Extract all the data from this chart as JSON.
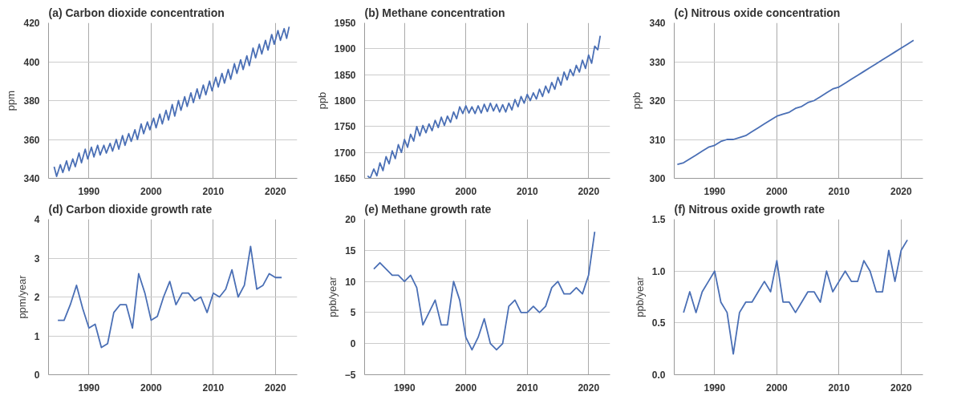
{
  "chart_data": [
    {
      "type": "line",
      "title": "(a)    Carbon dioxide concentration",
      "ylabel": "ppm",
      "xlim": [
        1983.5,
        2023.5
      ],
      "xticks": [
        1990,
        2000,
        2010,
        2020
      ],
      "ylim": [
        340,
        420
      ],
      "yticks": [
        340,
        360,
        380,
        400,
        420
      ],
      "grid": true,
      "x": [
        1984.4,
        1984.8,
        1985.4,
        1985.8,
        1986.4,
        1986.8,
        1987.4,
        1987.8,
        1988.4,
        1988.8,
        1989.4,
        1989.8,
        1990.4,
        1990.8,
        1991.4,
        1991.8,
        1992.4,
        1992.8,
        1993.4,
        1993.8,
        1994.4,
        1994.8,
        1995.4,
        1995.8,
        1996.4,
        1996.8,
        1997.4,
        1997.8,
        1998.4,
        1998.8,
        1999.4,
        1999.8,
        2000.4,
        2000.8,
        2001.4,
        2001.8,
        2002.4,
        2002.8,
        2003.4,
        2003.8,
        2004.4,
        2004.8,
        2005.4,
        2005.8,
        2006.4,
        2006.8,
        2007.4,
        2007.8,
        2008.4,
        2008.8,
        2009.4,
        2009.8,
        2010.4,
        2010.8,
        2011.4,
        2011.8,
        2012.4,
        2012.8,
        2013.4,
        2013.8,
        2014.4,
        2014.8,
        2015.4,
        2015.8,
        2016.4,
        2016.8,
        2017.4,
        2017.8,
        2018.4,
        2018.8,
        2019.4,
        2019.8,
        2020.4,
        2020.8,
        2021.4,
        2021.8,
        2022.2
      ],
      "series": [
        {
          "color": "#4a6fb5",
          "values": [
            346,
            341,
            347,
            343,
            349,
            344,
            350,
            346,
            353,
            348,
            355,
            350,
            356,
            351,
            357,
            352,
            357,
            353,
            358,
            354,
            360,
            355,
            362,
            357,
            363,
            359,
            365,
            360,
            368,
            363,
            369,
            365,
            371,
            366,
            373,
            368,
            375,
            370,
            378,
            372,
            380,
            375,
            382,
            377,
            384,
            379,
            386,
            381,
            388,
            383,
            390,
            385,
            392,
            387,
            394,
            389,
            396,
            391,
            399,
            394,
            401,
            396,
            403,
            398,
            407,
            402,
            409,
            404,
            411,
            406,
            414,
            409,
            416,
            411,
            417,
            412,
            418
          ]
        }
      ]
    },
    {
      "type": "line",
      "title": "(b)    Methane concentration",
      "ylabel": "ppb",
      "xlim": [
        1983.5,
        2023.5
      ],
      "xticks": [
        1990,
        2000,
        2010,
        2020
      ],
      "ylim": [
        1650,
        1950
      ],
      "yticks": [
        1650,
        1700,
        1750,
        1800,
        1850,
        1900,
        1950
      ],
      "grid": true,
      "x": [
        1984.0,
        1984.4,
        1985.0,
        1985.5,
        1986.0,
        1986.5,
        1987.0,
        1987.5,
        1988.0,
        1988.5,
        1989.0,
        1989.5,
        1990.0,
        1990.5,
        1991.0,
        1991.5,
        1992.0,
        1992.5,
        1993.0,
        1993.5,
        1994.0,
        1994.5,
        1995.0,
        1995.5,
        1996.0,
        1996.5,
        1997.0,
        1997.5,
        1998.0,
        1998.5,
        1999.0,
        1999.5,
        2000.0,
        2000.5,
        2001.0,
        2001.5,
        2002.0,
        2002.5,
        2003.0,
        2003.5,
        2004.0,
        2004.5,
        2005.0,
        2005.5,
        2006.0,
        2006.5,
        2007.0,
        2007.5,
        2008.0,
        2008.5,
        2009.0,
        2009.5,
        2010.0,
        2010.5,
        2011.0,
        2011.5,
        2012.0,
        2012.5,
        2013.0,
        2013.5,
        2014.0,
        2014.5,
        2015.0,
        2015.5,
        2016.0,
        2016.5,
        2017.0,
        2017.5,
        2018.0,
        2018.5,
        2019.0,
        2019.5,
        2020.0,
        2020.5,
        2021.0,
        2021.5,
        2021.9
      ],
      "series": [
        {
          "color": "#4a6fb5",
          "values": [
            1655,
            1650,
            1668,
            1655,
            1680,
            1665,
            1692,
            1678,
            1703,
            1688,
            1715,
            1700,
            1725,
            1710,
            1735,
            1722,
            1750,
            1732,
            1752,
            1738,
            1755,
            1742,
            1762,
            1748,
            1768,
            1752,
            1770,
            1758,
            1778,
            1765,
            1788,
            1775,
            1790,
            1776,
            1788,
            1775,
            1790,
            1776,
            1793,
            1779,
            1795,
            1780,
            1793,
            1778,
            1792,
            1778,
            1795,
            1782,
            1802,
            1788,
            1808,
            1795,
            1812,
            1800,
            1815,
            1803,
            1822,
            1808,
            1828,
            1815,
            1835,
            1822,
            1845,
            1830,
            1855,
            1840,
            1860,
            1848,
            1868,
            1855,
            1878,
            1862,
            1888,
            1872,
            1905,
            1898,
            1925
          ]
        }
      ]
    },
    {
      "type": "line",
      "title": "(c)    Nitrous oxide concentration",
      "ylabel": "ppb",
      "xlim": [
        1983.5,
        2023.5
      ],
      "xticks": [
        1990,
        2000,
        2010,
        2020
      ],
      "ylim": [
        300,
        340
      ],
      "yticks": [
        300,
        310,
        320,
        330,
        340
      ],
      "grid": true,
      "x": [
        1984,
        1985,
        1986,
        1987,
        1988,
        1989,
        1990,
        1991,
        1992,
        1993,
        1994,
        1995,
        1996,
        1997,
        1998,
        1999,
        2000,
        2001,
        2002,
        2003,
        2004,
        2005,
        2006,
        2007,
        2008,
        2009,
        2010,
        2011,
        2012,
        2013,
        2014,
        2015,
        2016,
        2017,
        2018,
        2019,
        2020,
        2021,
        2022
      ],
      "series": [
        {
          "color": "#4a6fb5",
          "values": [
            303.6,
            304,
            305,
            306,
            307,
            308,
            308.5,
            309.5,
            310,
            310,
            310.5,
            311,
            312,
            313,
            314,
            315,
            316,
            316.5,
            317,
            318,
            318.5,
            319.5,
            320,
            321,
            322,
            323,
            323.5,
            324.5,
            325.5,
            326.5,
            327.5,
            328.5,
            329.5,
            330.5,
            331.5,
            332.5,
            333.5,
            334.5,
            335.5
          ]
        }
      ]
    },
    {
      "type": "line",
      "title": "(d)    Carbon dioxide growth rate",
      "ylabel": "ppm/year",
      "xlim": [
        1983.5,
        2023.5
      ],
      "xticks": [
        1990,
        2000,
        2010,
        2020
      ],
      "ylim": [
        0,
        4
      ],
      "yticks": [
        0,
        1,
        2,
        3,
        4
      ],
      "grid": true,
      "x": [
        1985,
        1986,
        1987,
        1988,
        1989,
        1990,
        1991,
        1992,
        1993,
        1994,
        1995,
        1996,
        1997,
        1998,
        1999,
        2000,
        2001,
        2002,
        2003,
        2004,
        2005,
        2006,
        2007,
        2008,
        2009,
        2010,
        2011,
        2012,
        2013,
        2014,
        2015,
        2016,
        2017,
        2018,
        2019,
        2020,
        2021
      ],
      "series": [
        {
          "color": "#4a6fb5",
          "values": [
            1.4,
            1.4,
            1.8,
            2.3,
            1.7,
            1.2,
            1.3,
            0.7,
            0.8,
            1.6,
            1.8,
            1.8,
            1.2,
            2.6,
            2.1,
            1.4,
            1.5,
            2.0,
            2.4,
            1.8,
            2.1,
            2.1,
            1.9,
            2.0,
            1.6,
            2.1,
            2.0,
            2.2,
            2.7,
            2.0,
            2.3,
            3.3,
            2.2,
            2.3,
            2.6,
            2.5,
            2.5
          ]
        }
      ]
    },
    {
      "type": "line",
      "title": "(e)    Methane growth rate",
      "ylabel": "ppb/year",
      "xlim": [
        1983.5,
        2023.5
      ],
      "xticks": [
        1990,
        2000,
        2010,
        2020
      ],
      "ylim": [
        -5,
        20
      ],
      "yticks": [
        {
          "value": -5,
          "label": "−5"
        },
        0,
        5,
        10,
        15,
        20
      ],
      "grid": true,
      "x": [
        1985,
        1986,
        1987,
        1988,
        1989,
        1990,
        1991,
        1992,
        1993,
        1994,
        1995,
        1996,
        1997,
        1998,
        1999,
        2000,
        2001,
        2002,
        2003,
        2004,
        2005,
        2006,
        2007,
        2008,
        2009,
        2010,
        2011,
        2012,
        2013,
        2014,
        2015,
        2016,
        2017,
        2018,
        2019,
        2020,
        2021
      ],
      "series": [
        {
          "color": "#4a6fb5",
          "values": [
            12,
            13,
            12,
            11,
            11,
            10,
            11,
            9,
            3,
            5,
            7,
            3,
            3,
            10,
            7,
            1,
            -1,
            1,
            4,
            0,
            -1,
            0,
            6,
            7,
            5,
            5,
            6,
            5,
            6,
            9,
            10,
            8,
            8,
            9,
            8,
            11,
            18
          ]
        }
      ]
    },
    {
      "type": "line",
      "title": "(f)    Nitrous oxide growth rate",
      "ylabel": "ppb/year",
      "xlim": [
        1983.5,
        2023.5
      ],
      "xticks": [
        1990,
        2000,
        2010,
        2020
      ],
      "ylim": [
        0,
        1.5
      ],
      "yticks": [
        {
          "value": 0,
          "label": "0.0"
        },
        {
          "value": 0.5,
          "label": "0.5"
        },
        {
          "value": 1,
          "label": "1.0"
        },
        {
          "value": 1.5,
          "label": "1.5"
        }
      ],
      "grid": true,
      "x": [
        1985,
        1986,
        1987,
        1988,
        1989,
        1990,
        1991,
        1992,
        1993,
        1994,
        1995,
        1996,
        1997,
        1998,
        1999,
        2000,
        2001,
        2002,
        2003,
        2004,
        2005,
        2006,
        2007,
        2008,
        2009,
        2010,
        2011,
        2012,
        2013,
        2014,
        2015,
        2016,
        2017,
        2018,
        2019,
        2020,
        2021
      ],
      "series": [
        {
          "color": "#4a6fb5",
          "values": [
            0.6,
            0.8,
            0.6,
            0.8,
            0.9,
            1.0,
            0.7,
            0.6,
            0.2,
            0.6,
            0.7,
            0.7,
            0.8,
            0.9,
            0.8,
            1.1,
            0.7,
            0.7,
            0.6,
            0.7,
            0.8,
            0.8,
            0.7,
            1.0,
            0.8,
            0.9,
            1.0,
            0.9,
            0.9,
            1.1,
            1.0,
            0.8,
            0.8,
            1.2,
            0.9,
            1.2,
            1.3
          ]
        }
      ]
    }
  ]
}
